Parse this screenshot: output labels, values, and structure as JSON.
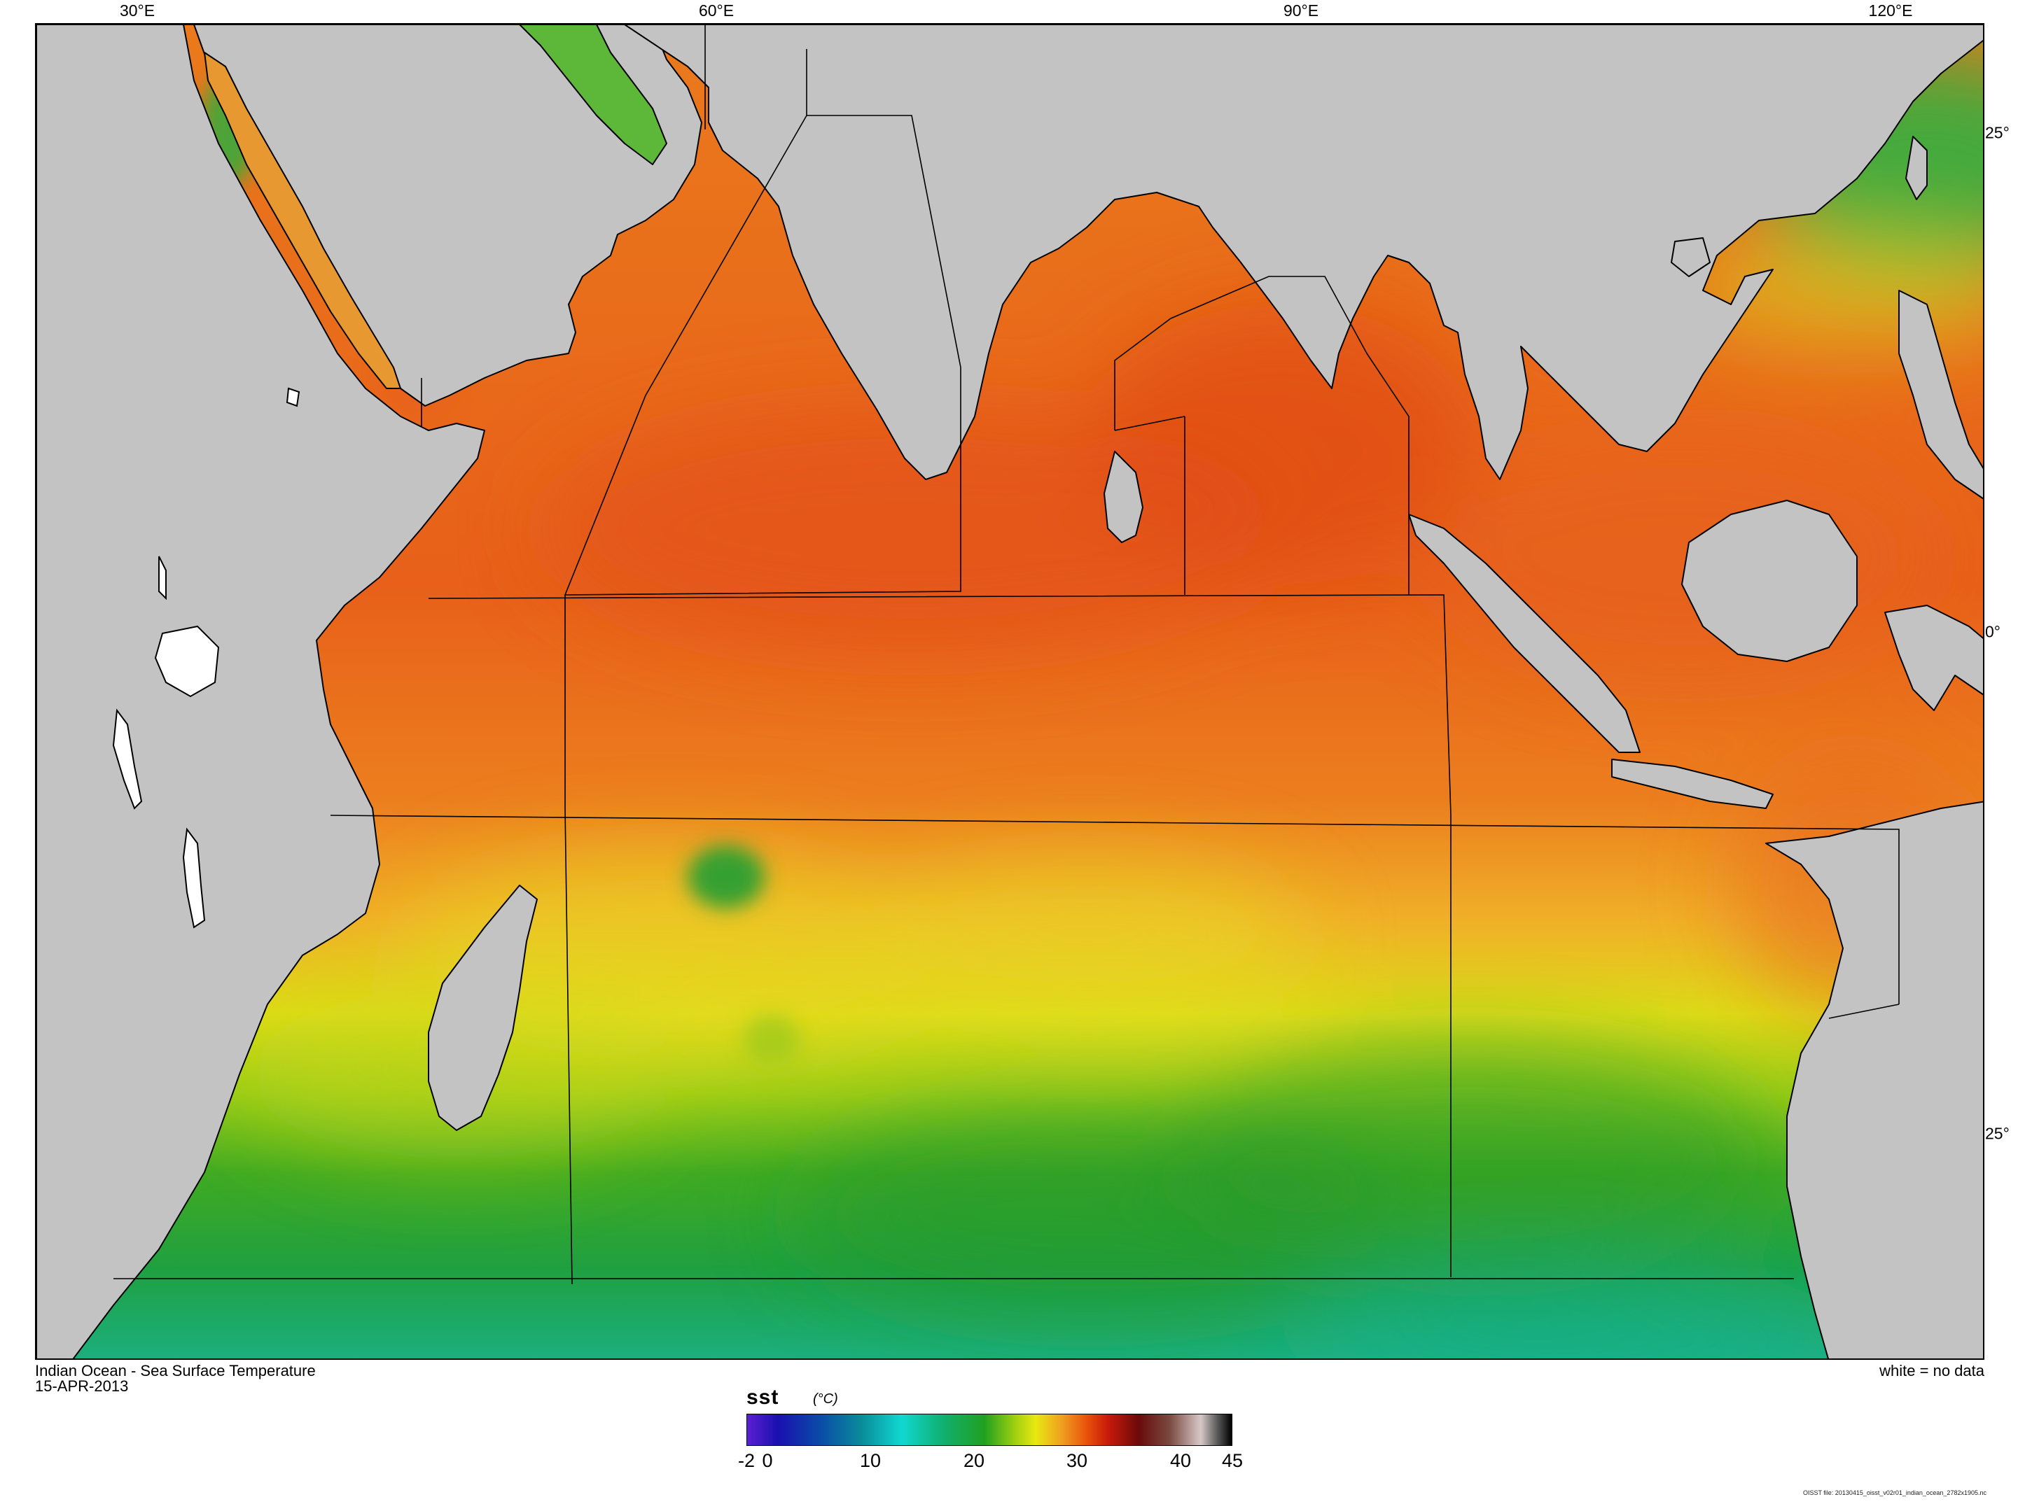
{
  "map": {
    "top_longitude_labels": [
      "30°E",
      "60°E",
      "90°E",
      "120°E"
    ],
    "right_latitude_labels": [
      "25°",
      "0°",
      "25°"
    ],
    "land_color": "#c3c3c3",
    "coastline_color": "#000000",
    "no_data_color": "#ffffff"
  },
  "captions": {
    "title": "Indian Ocean - Sea Surface Temperature",
    "date": "15-APR-2013",
    "legend_note": "white = no data"
  },
  "colorbar": {
    "variable": "sst",
    "units": "(°C)",
    "tick_labels": [
      "-2",
      "0",
      "10",
      "20",
      "30",
      "40",
      "45"
    ],
    "min": -2,
    "max": 45,
    "stops": [
      {
        "value": -2,
        "color": "#5a1fd0"
      },
      {
        "value": 1,
        "color": "#1a10b0"
      },
      {
        "value": 5,
        "color": "#0a4aa8"
      },
      {
        "value": 9,
        "color": "#0a8a9a"
      },
      {
        "value": 13,
        "color": "#10d8d0"
      },
      {
        "value": 17,
        "color": "#10b070"
      },
      {
        "value": 21,
        "color": "#20a020"
      },
      {
        "value": 24,
        "color": "#a0d010"
      },
      {
        "value": 26,
        "color": "#e8e810"
      },
      {
        "value": 28.5,
        "color": "#f0a020"
      },
      {
        "value": 31,
        "color": "#e8500a"
      },
      {
        "value": 33,
        "color": "#c81a0a"
      },
      {
        "value": 36,
        "color": "#6a0a0a"
      },
      {
        "value": 39,
        "color": "#7a4a40"
      },
      {
        "value": 42,
        "color": "#d8c8c8"
      },
      {
        "value": 43.5,
        "color": "#606060"
      },
      {
        "value": 45,
        "color": "#000000"
      }
    ]
  },
  "footnote": "OISST file: 20130415_oisst_v02r01_indian_ocean_2782x1905.nc"
}
